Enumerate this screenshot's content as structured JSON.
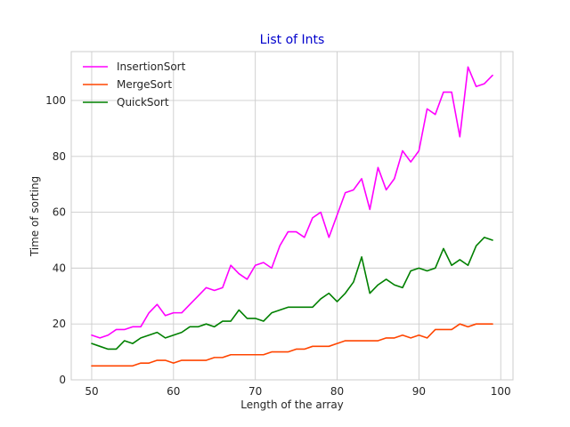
{
  "chart_data": {
    "type": "line",
    "title": "List of Ints",
    "title_color": "#0000cc",
    "xlabel": "Length of the array",
    "ylabel": "Time of sorting",
    "xlim": [
      47.5,
      101.5
    ],
    "ylim": [
      0,
      117.5
    ],
    "x_ticks": [
      50,
      60,
      70,
      80,
      90,
      100
    ],
    "y_ticks": [
      0,
      20,
      40,
      60,
      80,
      100
    ],
    "grid": true,
    "legend_position": "top-left",
    "x": [
      50,
      51,
      52,
      53,
      54,
      55,
      56,
      57,
      58,
      59,
      60,
      61,
      62,
      63,
      64,
      65,
      66,
      67,
      68,
      69,
      70,
      71,
      72,
      73,
      74,
      75,
      76,
      77,
      78,
      79,
      80,
      81,
      82,
      83,
      84,
      85,
      86,
      87,
      88,
      89,
      90,
      91,
      92,
      93,
      94,
      95,
      96,
      97,
      98,
      99
    ],
    "series": [
      {
        "name": "InsertionSort",
        "color": "#ff00ff",
        "values": [
          16,
          15,
          16,
          18,
          18,
          19,
          19,
          24,
          27,
          23,
          24,
          24,
          27,
          30,
          33,
          32,
          33,
          41,
          38,
          36,
          41,
          42,
          40,
          48,
          53,
          53,
          51,
          58,
          60,
          51,
          59,
          67,
          68,
          72,
          61,
          76,
          68,
          72,
          82,
          78,
          82,
          97,
          95,
          103,
          103,
          87,
          112,
          105,
          106,
          109
        ]
      },
      {
        "name": "MergeSort",
        "color": "#ff4500",
        "values": [
          5,
          5,
          5,
          5,
          5,
          5,
          6,
          6,
          7,
          7,
          6,
          7,
          7,
          7,
          7,
          8,
          8,
          9,
          9,
          9,
          9,
          9,
          10,
          10,
          10,
          11,
          11,
          12,
          12,
          12,
          13,
          14,
          14,
          14,
          14,
          14,
          15,
          15,
          16,
          15,
          16,
          15,
          18,
          18,
          18,
          20,
          19,
          20,
          20,
          20
        ]
      },
      {
        "name": "QuickSort",
        "color": "#008000",
        "values": [
          13,
          12,
          11,
          11,
          14,
          13,
          15,
          16,
          17,
          15,
          16,
          17,
          19,
          19,
          20,
          19,
          21,
          21,
          25,
          22,
          22,
          21,
          24,
          25,
          26,
          26,
          26,
          26,
          29,
          31,
          28,
          31,
          35,
          44,
          31,
          34,
          36,
          34,
          33,
          39,
          40,
          39,
          40,
          47,
          41,
          43,
          41,
          48,
          51,
          50
        ]
      }
    ]
  }
}
